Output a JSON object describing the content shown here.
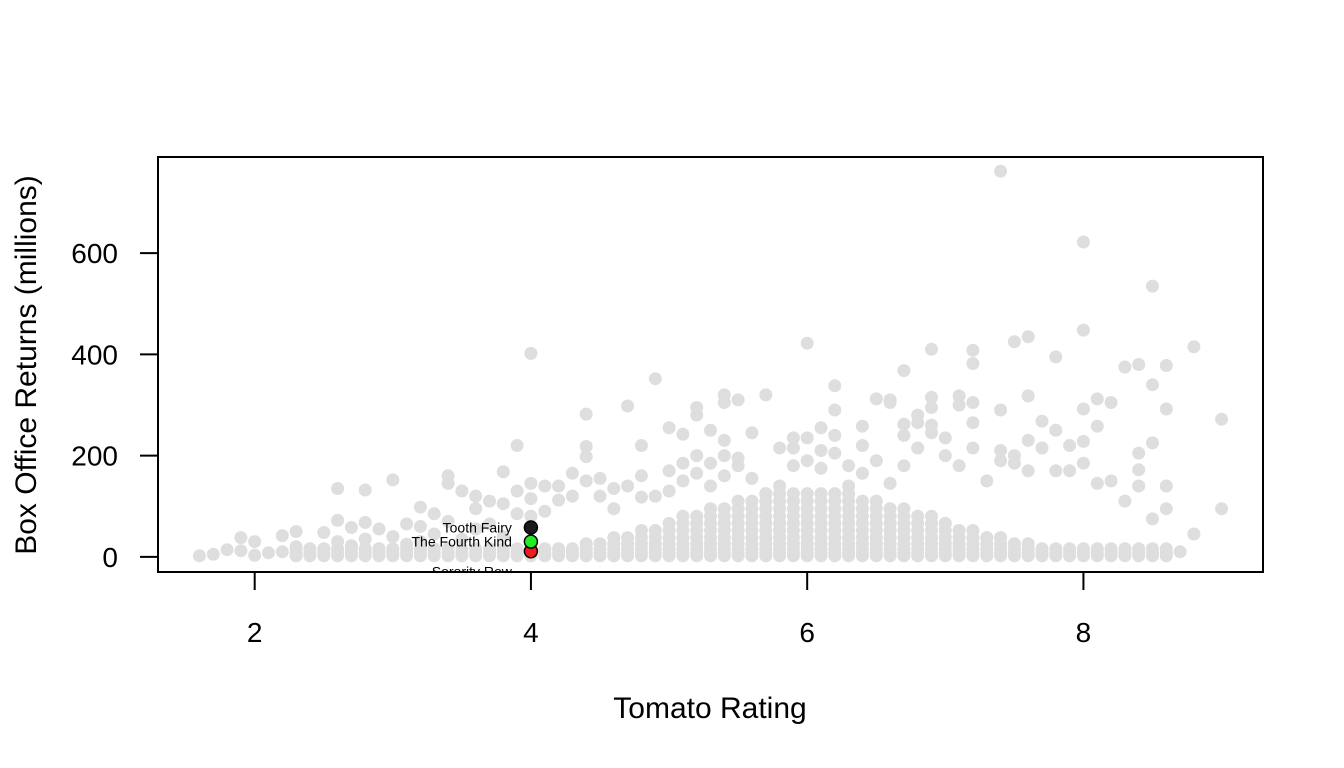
{
  "chart_data": {
    "type": "scatter",
    "xlabel": "Tomato Rating",
    "ylabel": "Box Office Returns (millions)",
    "xlim": [
      1.3,
      9.3
    ],
    "ylim": [
      -30,
      790
    ],
    "x_ticks": [
      2,
      4,
      6,
      8
    ],
    "y_ticks": [
      0,
      200,
      400,
      600
    ],
    "grid": false,
    "background_color": "#dedede",
    "background_points": [
      [
        1.6,
        2
      ],
      [
        1.7,
        5
      ],
      [
        1.8,
        14
      ],
      [
        1.9,
        38
      ],
      [
        1.9,
        12
      ],
      [
        2.0,
        30
      ],
      [
        2.0,
        3
      ],
      [
        2.1,
        8
      ],
      [
        2.2,
        10
      ],
      [
        2.2,
        42
      ],
      [
        2.3,
        50
      ],
      [
        2.3,
        20
      ],
      [
        2.3,
        2
      ],
      [
        2.4,
        6
      ],
      [
        2.5,
        15
      ],
      [
        2.5,
        48
      ],
      [
        2.6,
        135
      ],
      [
        2.6,
        72
      ],
      [
        2.6,
        30
      ],
      [
        2.7,
        58
      ],
      [
        2.7,
        22
      ],
      [
        2.8,
        132
      ],
      [
        2.8,
        68
      ],
      [
        2.8,
        35
      ],
      [
        2.9,
        55
      ],
      [
        2.9,
        15
      ],
      [
        3.0,
        152
      ],
      [
        3.0,
        40
      ],
      [
        3.1,
        65
      ],
      [
        3.1,
        25
      ],
      [
        3.2,
        98
      ],
      [
        3.2,
        60
      ],
      [
        3.2,
        30
      ],
      [
        3.3,
        85
      ],
      [
        3.3,
        45
      ],
      [
        3.4,
        160
      ],
      [
        3.4,
        145
      ],
      [
        3.4,
        70
      ],
      [
        3.5,
        130
      ],
      [
        3.5,
        35
      ],
      [
        3.6,
        120
      ],
      [
        3.6,
        95
      ],
      [
        3.6,
        55
      ],
      [
        3.7,
        110
      ],
      [
        3.7,
        65
      ],
      [
        3.8,
        168
      ],
      [
        3.8,
        105
      ],
      [
        3.8,
        40
      ],
      [
        3.9,
        220
      ],
      [
        3.9,
        130
      ],
      [
        3.9,
        85
      ],
      [
        4.0,
        402
      ],
      [
        4.0,
        145
      ],
      [
        4.0,
        115
      ],
      [
        4.0,
        80
      ],
      [
        4.1,
        140
      ],
      [
        4.1,
        90
      ],
      [
        4.2,
        140
      ],
      [
        4.2,
        112
      ],
      [
        4.3,
        165
      ],
      [
        4.3,
        120
      ],
      [
        4.4,
        282
      ],
      [
        4.4,
        218
      ],
      [
        4.4,
        198
      ],
      [
        4.4,
        150
      ],
      [
        4.5,
        155
      ],
      [
        4.5,
        120
      ],
      [
        4.6,
        135
      ],
      [
        4.6,
        95
      ],
      [
        4.7,
        298
      ],
      [
        4.7,
        140
      ],
      [
        4.8,
        220
      ],
      [
        4.8,
        160
      ],
      [
        4.8,
        118
      ],
      [
        4.9,
        352
      ],
      [
        4.9,
        120
      ],
      [
        5.0,
        255
      ],
      [
        5.0,
        170
      ],
      [
        5.0,
        130
      ],
      [
        5.1,
        242
      ],
      [
        5.1,
        185
      ],
      [
        5.1,
        150
      ],
      [
        5.2,
        295
      ],
      [
        5.2,
        280
      ],
      [
        5.2,
        200
      ],
      [
        5.2,
        165
      ],
      [
        5.3,
        250
      ],
      [
        5.3,
        185
      ],
      [
        5.3,
        140
      ],
      [
        5.4,
        320
      ],
      [
        5.4,
        305
      ],
      [
        5.4,
        230
      ],
      [
        5.4,
        200
      ],
      [
        5.4,
        160
      ],
      [
        5.5,
        310
      ],
      [
        5.5,
        195
      ],
      [
        5.5,
        180
      ],
      [
        5.6,
        245
      ],
      [
        5.6,
        155
      ],
      [
        5.7,
        320
      ],
      [
        5.7,
        125
      ],
      [
        5.8,
        215
      ],
      [
        5.8,
        140
      ],
      [
        5.9,
        235
      ],
      [
        5.9,
        215
      ],
      [
        5.9,
        180
      ],
      [
        6.0,
        422
      ],
      [
        6.0,
        235
      ],
      [
        6.0,
        190
      ],
      [
        6.1,
        255
      ],
      [
        6.1,
        210
      ],
      [
        6.1,
        175
      ],
      [
        6.2,
        338
      ],
      [
        6.2,
        290
      ],
      [
        6.2,
        240
      ],
      [
        6.2,
        205
      ],
      [
        6.3,
        180
      ],
      [
        6.3,
        140
      ],
      [
        6.4,
        258
      ],
      [
        6.4,
        220
      ],
      [
        6.4,
        165
      ],
      [
        6.5,
        312
      ],
      [
        6.5,
        190
      ],
      [
        6.6,
        310
      ],
      [
        6.6,
        305
      ],
      [
        6.6,
        145
      ],
      [
        6.7,
        368
      ],
      [
        6.7,
        262
      ],
      [
        6.7,
        240
      ],
      [
        6.7,
        180
      ],
      [
        6.8,
        280
      ],
      [
        6.8,
        265
      ],
      [
        6.8,
        215
      ],
      [
        6.9,
        410
      ],
      [
        6.9,
        315
      ],
      [
        6.9,
        295
      ],
      [
        6.9,
        260
      ],
      [
        6.9,
        245
      ],
      [
        7.0,
        235
      ],
      [
        7.0,
        200
      ],
      [
        7.1,
        318
      ],
      [
        7.1,
        300
      ],
      [
        7.1,
        180
      ],
      [
        7.2,
        408
      ],
      [
        7.2,
        382
      ],
      [
        7.2,
        305
      ],
      [
        7.2,
        265
      ],
      [
        7.2,
        215
      ],
      [
        7.3,
        150
      ],
      [
        7.4,
        762
      ],
      [
        7.4,
        290
      ],
      [
        7.4,
        210
      ],
      [
        7.4,
        190
      ],
      [
        7.5,
        425
      ],
      [
        7.5,
        200
      ],
      [
        7.5,
        185
      ],
      [
        7.6,
        435
      ],
      [
        7.6,
        318
      ],
      [
        7.6,
        230
      ],
      [
        7.6,
        170
      ],
      [
        7.7,
        268
      ],
      [
        7.7,
        215
      ],
      [
        7.8,
        395
      ],
      [
        7.8,
        250
      ],
      [
        7.8,
        170
      ],
      [
        7.9,
        220
      ],
      [
        7.9,
        170
      ],
      [
        8.0,
        622
      ],
      [
        8.0,
        448
      ],
      [
        8.0,
        292
      ],
      [
        8.0,
        228
      ],
      [
        8.0,
        185
      ],
      [
        8.1,
        312
      ],
      [
        8.1,
        258
      ],
      [
        8.1,
        145
      ],
      [
        8.2,
        305
      ],
      [
        8.2,
        150
      ],
      [
        8.3,
        375
      ],
      [
        8.3,
        110
      ],
      [
        8.4,
        380
      ],
      [
        8.4,
        205
      ],
      [
        8.4,
        172
      ],
      [
        8.4,
        140
      ],
      [
        8.5,
        535
      ],
      [
        8.5,
        340
      ],
      [
        8.5,
        225
      ],
      [
        8.5,
        75
      ],
      [
        8.6,
        378
      ],
      [
        8.6,
        292
      ],
      [
        8.6,
        140
      ],
      [
        8.6,
        95
      ],
      [
        8.7,
        10
      ],
      [
        8.8,
        415
      ],
      [
        8.8,
        45
      ],
      [
        9.0,
        272
      ],
      [
        9.0,
        95
      ]
    ],
    "dense_band": {
      "x_min": 2.3,
      "x_max": 8.6,
      "x_step": 0.1,
      "y_values": [
        2,
        8,
        16,
        26,
        38,
        52,
        66,
        80,
        95,
        110,
        125
      ],
      "peak_x": 6.0,
      "spread": 1.5
    },
    "highlighted": [
      {
        "label": "Tooth Fairy",
        "x": 4.0,
        "y": 58,
        "color": "#1a1a1a"
      },
      {
        "label": "The Fourth Kind",
        "x": 4.0,
        "y": 30,
        "color": "#22ee22"
      },
      {
        "label": "Sorority Row",
        "x": 4.0,
        "y": 11,
        "color": "#ee1c1c"
      }
    ]
  }
}
